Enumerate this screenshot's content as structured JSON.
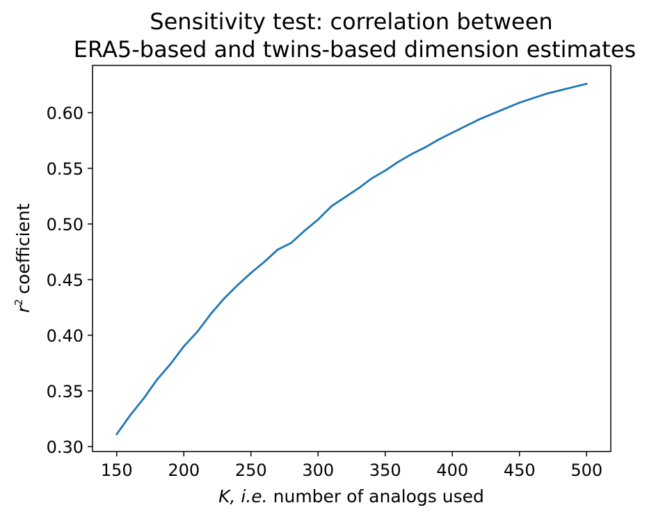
{
  "chart_data": {
    "type": "line",
    "title_lines": [
      "Sensitivity test: correlation between",
      "ERA5-based and twins-based dimension estimates"
    ],
    "xlabel": {
      "italic": "K, i.e.",
      "text": "number of analogs used"
    },
    "ylabel": {
      "symbol": "r",
      "superscript": "2",
      "text": "coefficient"
    },
    "xlim": [
      132,
      518
    ],
    "ylim": [
      0.2955,
      0.6425
    ],
    "xticks": [
      150,
      200,
      250,
      300,
      350,
      400,
      450,
      500
    ],
    "yticks": [
      0.3,
      0.35,
      0.4,
      0.45,
      0.5,
      0.55,
      0.6
    ],
    "xtick_labels": [
      "150",
      "200",
      "250",
      "300",
      "350",
      "400",
      "450",
      "500"
    ],
    "ytick_labels": [
      "0.30",
      "0.35",
      "0.40",
      "0.45",
      "0.50",
      "0.55",
      "0.60"
    ],
    "grid": false,
    "line_color": "#1f77b4",
    "series": [
      {
        "x": [
          150,
          160,
          170,
          180,
          190,
          200,
          210,
          220,
          230,
          240,
          250,
          260,
          270,
          280,
          290,
          300,
          310,
          320,
          330,
          340,
          350,
          360,
          370,
          380,
          390,
          400,
          410,
          420,
          430,
          440,
          450,
          460,
          470,
          480,
          490,
          500
        ],
        "values": [
          0.311,
          0.328,
          0.343,
          0.36,
          0.374,
          0.39,
          0.403,
          0.419,
          0.433,
          0.445,
          0.456,
          0.466,
          0.477,
          0.483,
          0.494,
          0.504,
          0.516,
          0.524,
          0.532,
          0.541,
          0.548,
          0.556,
          0.563,
          0.569,
          0.576,
          0.582,
          0.588,
          0.594,
          0.599,
          0.604,
          0.609,
          0.613,
          0.617,
          0.62,
          0.623,
          0.626
        ]
      }
    ]
  }
}
